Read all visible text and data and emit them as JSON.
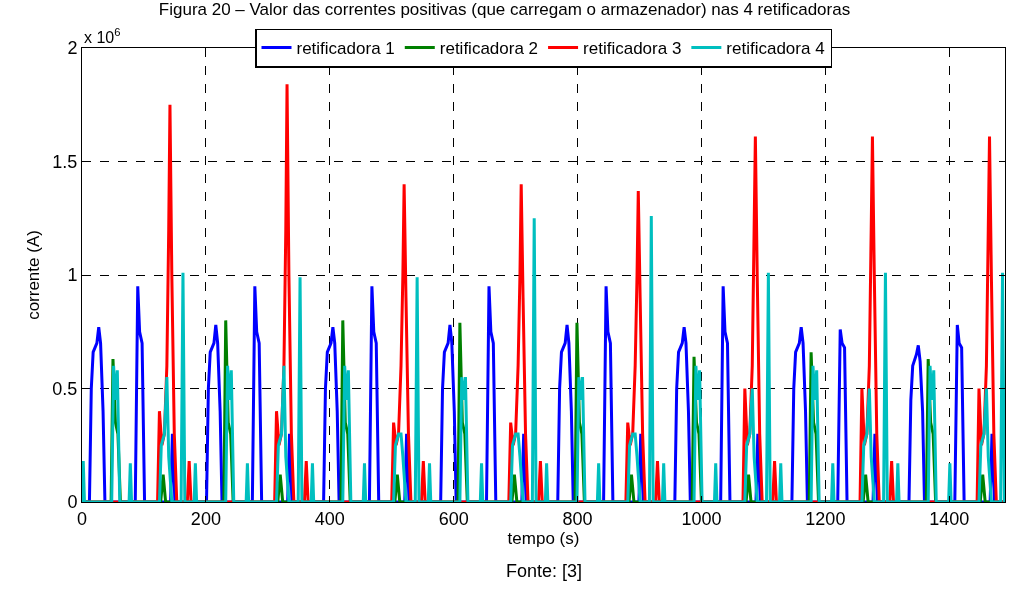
{
  "chart_data": {
    "type": "line",
    "title": "Figura 20 – Valor das correntes positivas (que carregam o armazenador) nas 4 retificadoras",
    "xlabel": "tempo (s)",
    "ylabel": "corrente (A)",
    "annotations": [
      "x 10$^{6}$",
      "Fonte: [3]"
    ],
    "xlim": [
      0,
      1490
    ],
    "xticks": [
      0,
      200,
      400,
      600,
      800,
      1000,
      1200,
      1400
    ],
    "ylim": [
      0,
      2
    ],
    "yticks": [
      0,
      0.5,
      1,
      1.5,
      2
    ],
    "grid": true,
    "legend": "top",
    "line_style": "solid",
    "marker": "none",
    "series": [
      {
        "name": "retificadora 1",
        "color": "#0000ff",
        "x": [
          0,
          12,
          15,
          18,
          24,
          27,
          30,
          34,
          37,
          86,
          90,
          93,
          97,
          101,
          143,
          146,
          150,
          201,
          204,
          207,
          213,
          216,
          219,
          223,
          226,
          275,
          279,
          282,
          286,
          290,
          332,
          335,
          339,
          390,
          393,
          396,
          402,
          405,
          408,
          412,
          415,
          464,
          468,
          471,
          475,
          479,
          521,
          524,
          528,
          579,
          582,
          585,
          591,
          594,
          597,
          601,
          604,
          653,
          657,
          660,
          664,
          668,
          710,
          713,
          717,
          768,
          771,
          774,
          780,
          783,
          786,
          790,
          793,
          842,
          846,
          849,
          853,
          857,
          899,
          902,
          906,
          957,
          960,
          963,
          969,
          972,
          975,
          979,
          982,
          1031,
          1035,
          1038,
          1042,
          1046,
          1088,
          1091,
          1095,
          1146,
          1149,
          1152,
          1158,
          1161,
          1164,
          1168,
          1171,
          1220,
          1224,
          1227,
          1231,
          1235,
          1277,
          1280,
          1284,
          1335,
          1338,
          1341,
          1347,
          1350,
          1353,
          1357,
          1360,
          1409,
          1413,
          1416,
          1420,
          1424,
          1466,
          1469,
          1473,
          1490
        ],
        "values": [
          0,
          0,
          0.5,
          0.66,
          0.7,
          0.77,
          0.7,
          0.4,
          0,
          0,
          0.95,
          0.75,
          0.7,
          0,
          0,
          0.3,
          0,
          0,
          0.5,
          0.66,
          0.7,
          0.78,
          0.7,
          0.4,
          0,
          0,
          0.95,
          0.75,
          0.7,
          0,
          0,
          0.3,
          0,
          0,
          0.5,
          0.66,
          0.7,
          0.77,
          0.7,
          0.4,
          0,
          0,
          0.95,
          0.75,
          0.7,
          0,
          0,
          0.3,
          0,
          0,
          0.5,
          0.66,
          0.7,
          0.78,
          0.7,
          0.4,
          0,
          0,
          0.95,
          0.75,
          0.7,
          0,
          0,
          0.3,
          0,
          0,
          0.5,
          0.66,
          0.7,
          0.78,
          0.7,
          0.4,
          0,
          0,
          0.95,
          0.75,
          0.7,
          0,
          0,
          0.3,
          0,
          0,
          0.5,
          0.66,
          0.7,
          0.77,
          0.7,
          0.4,
          0,
          0,
          0.95,
          0.75,
          0.7,
          0,
          0,
          0.3,
          0,
          0,
          0.5,
          0.66,
          0.7,
          0.77,
          0.7,
          0.4,
          0,
          0,
          0.76,
          0.7,
          0.68,
          0,
          0,
          0.3,
          0,
          0,
          0.45,
          0.6,
          0.65,
          0.69,
          0.62,
          0.4,
          0,
          0,
          0.78,
          0.7,
          0.68,
          0,
          0,
          0.3,
          0,
          0
        ]
      },
      {
        "name": "retificadora 2",
        "color": "#008000",
        "x": [
          0,
          47,
          50,
          54,
          58,
          62,
          127,
          131,
          135,
          229,
          232,
          236,
          240,
          244,
          316,
          320,
          324,
          418,
          421,
          425,
          429,
          433,
          505,
          509,
          513,
          607,
          610,
          614,
          618,
          622,
          694,
          698,
          702,
          796,
          799,
          803,
          807,
          811,
          883,
          887,
          891,
          985,
          988,
          992,
          996,
          1000,
          1072,
          1076,
          1080,
          1174,
          1177,
          1181,
          1185,
          1189,
          1261,
          1265,
          1269,
          1363,
          1366,
          1370,
          1374,
          1378,
          1450,
          1454,
          1458,
          1490
        ],
        "values": [
          0,
          0,
          0.63,
          0.35,
          0.3,
          0,
          0,
          0.12,
          0,
          0,
          0.8,
          0.35,
          0.3,
          0,
          0,
          0.12,
          0,
          0,
          0.8,
          0.35,
          0.3,
          0,
          0,
          0.12,
          0,
          0,
          0.79,
          0.35,
          0.3,
          0,
          0,
          0.12,
          0,
          0,
          0.79,
          0.35,
          0.3,
          0,
          0,
          0.12,
          0,
          0,
          0.64,
          0.35,
          0.3,
          0,
          0,
          0.12,
          0,
          0,
          0.66,
          0.35,
          0.3,
          0,
          0,
          0.12,
          0,
          0,
          0.63,
          0.35,
          0.3,
          0,
          0,
          0.12,
          0,
          0
        ]
      },
      {
        "name": "retificadora 3",
        "color": "#ff0000",
        "x": [
          0,
          122,
          125,
          129,
          133,
          137,
          140,
          142,
          145,
          149,
          153,
          170,
          173,
          176,
          311,
          314,
          318,
          322,
          326,
          329,
          331,
          334,
          338,
          342,
          359,
          362,
          365,
          500,
          503,
          507,
          511,
          515,
          518,
          520,
          523,
          527,
          531,
          548,
          551,
          554,
          689,
          692,
          696,
          700,
          704,
          707,
          709,
          712,
          716,
          720,
          737,
          740,
          743,
          878,
          881,
          885,
          889,
          893,
          896,
          898,
          901,
          905,
          909,
          926,
          929,
          932,
          1067,
          1070,
          1074,
          1078,
          1082,
          1085,
          1087,
          1090,
          1094,
          1098,
          1115,
          1118,
          1121,
          1256,
          1259,
          1263,
          1267,
          1271,
          1274,
          1276,
          1279,
          1283,
          1287,
          1304,
          1307,
          1310,
          1445,
          1448,
          1452,
          1456,
          1460,
          1463,
          1465,
          1468,
          1472,
          1476,
          1490
        ],
        "values": [
          0,
          0,
          0.4,
          0.25,
          0.3,
          0.6,
          1.2,
          1.75,
          1.0,
          0.3,
          0,
          0,
          0.18,
          0,
          0,
          0.4,
          0.25,
          0.3,
          0.6,
          1.2,
          1.84,
          1.0,
          0.3,
          0,
          0,
          0.18,
          0,
          0,
          0.35,
          0.25,
          0.3,
          0.6,
          1.0,
          1.4,
          0.9,
          0.3,
          0,
          0,
          0.18,
          0,
          0,
          0.35,
          0.25,
          0.3,
          0.6,
          1.0,
          1.4,
          0.9,
          0.3,
          0,
          0,
          0.18,
          0,
          0,
          0.35,
          0.25,
          0.3,
          0.6,
          1.0,
          1.37,
          0.9,
          0.3,
          0,
          0,
          0.18,
          0,
          0,
          0.5,
          0.25,
          0.3,
          0.6,
          1.2,
          1.61,
          1.0,
          0.3,
          0,
          0,
          0.18,
          0,
          0,
          0.5,
          0.25,
          0.3,
          0.6,
          1.2,
          1.61,
          1.0,
          0.3,
          0,
          0,
          0.18,
          0,
          0,
          0.5,
          0.25,
          0.3,
          0.6,
          1.2,
          1.61,
          1.0,
          0.3,
          0,
          0
        ]
      },
      {
        "name": "retificadora 4",
        "color": "#00bfbf",
        "x": [
          0,
          2,
          4,
          48,
          51,
          54,
          57,
          61,
          76,
          78,
          80,
          125,
          128,
          133,
          137,
          140,
          145,
          160,
          163,
          166,
          181,
          183,
          185,
          232,
          235,
          238,
          241,
          245,
          265,
          267,
          269,
          314,
          317,
          322,
          326,
          329,
          334,
          349,
          352,
          355,
          370,
          372,
          374,
          421,
          424,
          427,
          430,
          434,
          454,
          456,
          458,
          503,
          506,
          511,
          515,
          518,
          523,
          538,
          541,
          544,
          559,
          561,
          563,
          610,
          613,
          616,
          619,
          623,
          643,
          645,
          647,
          692,
          695,
          700,
          704,
          707,
          712,
          727,
          730,
          733,
          748,
          750,
          752,
          799,
          802,
          805,
          808,
          812,
          832,
          834,
          836,
          881,
          884,
          889,
          893,
          896,
          901,
          916,
          919,
          922,
          937,
          939,
          941,
          988,
          991,
          994,
          997,
          1001,
          1021,
          1023,
          1025,
          1070,
          1073,
          1078,
          1082,
          1085,
          1090,
          1105,
          1108,
          1111,
          1126,
          1128,
          1130,
          1177,
          1180,
          1183,
          1186,
          1190,
          1210,
          1212,
          1214,
          1259,
          1262,
          1267,
          1271,
          1274,
          1279,
          1294,
          1297,
          1300,
          1315,
          1317,
          1319,
          1366,
          1369,
          1372,
          1375,
          1379,
          1399,
          1401,
          1403,
          1448,
          1451,
          1456,
          1460,
          1463,
          1468,
          1483,
          1486,
          1489
        ],
        "values": [
          0,
          0.18,
          0,
          0,
          0.6,
          0.45,
          0.58,
          0,
          0,
          0.17,
          0,
          0,
          0.25,
          0.3,
          0.55,
          0.2,
          0,
          0,
          1.01,
          0,
          0,
          0.17,
          0,
          0,
          0.6,
          0.45,
          0.58,
          0,
          0,
          0.17,
          0,
          0,
          0.25,
          0.3,
          0.6,
          0.2,
          0,
          0,
          0.99,
          0,
          0,
          0.17,
          0,
          0,
          0.6,
          0.45,
          0.58,
          0,
          0,
          0.17,
          0,
          0,
          0.25,
          0.3,
          0.3,
          0.2,
          0,
          0,
          0.99,
          0,
          0,
          0.17,
          0,
          0,
          0.55,
          0.45,
          0.55,
          0,
          0,
          0.17,
          0,
          0,
          0.25,
          0.3,
          0.3,
          0.2,
          0,
          0,
          1.25,
          0,
          0,
          0.17,
          0,
          0,
          0.55,
          0.45,
          0.55,
          0,
          0,
          0.17,
          0,
          0,
          0.25,
          0.3,
          0.3,
          0.2,
          0,
          0,
          1.26,
          0,
          0,
          0.17,
          0,
          0,
          0.6,
          0.45,
          0.58,
          0,
          0,
          0.17,
          0,
          0,
          0.25,
          0.3,
          0.5,
          0.2,
          0,
          0,
          1.01,
          0,
          0,
          0.17,
          0,
          0,
          0.6,
          0.45,
          0.58,
          0,
          0,
          0.17,
          0,
          0,
          0.25,
          0.3,
          0.5,
          0.2,
          0,
          0,
          1.01,
          0,
          0,
          0.17,
          0,
          0,
          0.6,
          0.45,
          0.58,
          0,
          0,
          0.17,
          0,
          0,
          0.25,
          0.3,
          0.5,
          0.2,
          0,
          0,
          1.01,
          0
        ]
      }
    ]
  }
}
